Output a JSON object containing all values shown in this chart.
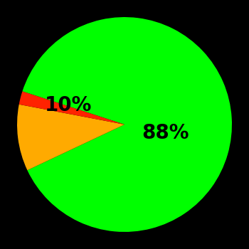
{
  "slices": [
    88,
    10,
    2
  ],
  "colors": [
    "#00ff00",
    "#ffaa00",
    "#ff2200"
  ],
  "labels": [
    "88%",
    "10%",
    ""
  ],
  "background_color": "#000000",
  "startangle": 162,
  "figsize": [
    3.5,
    3.5
  ],
  "dpi": 100,
  "label_fontsize": 20,
  "label_fontweight": "bold"
}
